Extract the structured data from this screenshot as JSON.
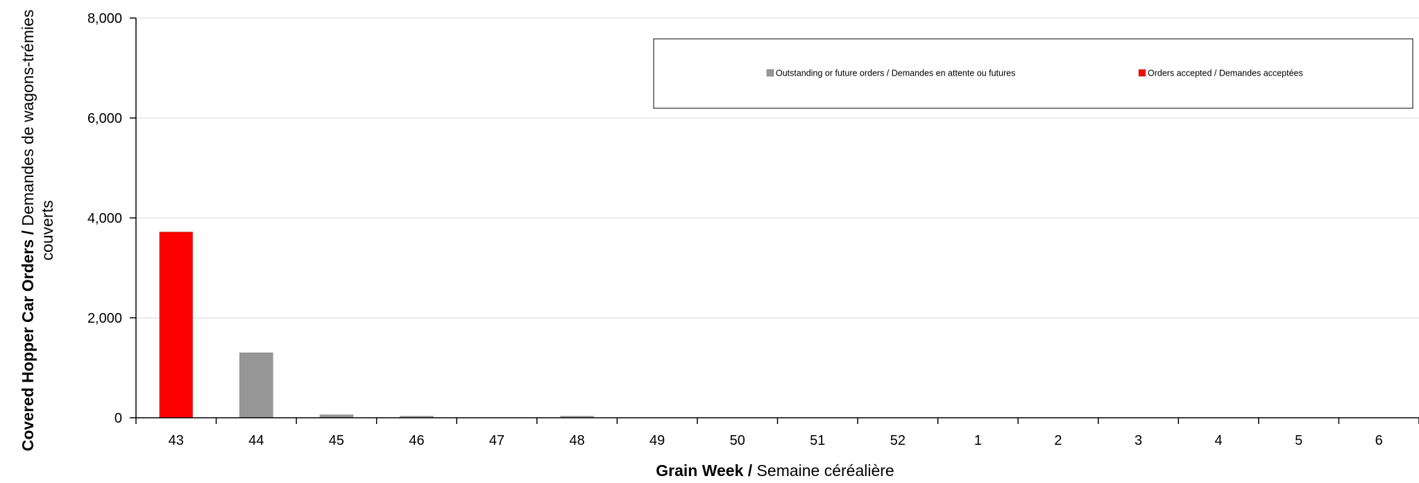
{
  "chart_data": {
    "type": "bar",
    "categories": [
      "43",
      "44",
      "45",
      "46",
      "47",
      "48",
      "49",
      "50",
      "51",
      "52",
      "1",
      "2",
      "3",
      "4",
      "5",
      "6"
    ],
    "series": [
      {
        "name": "Outstanding or future orders / Demandes en attente ou futures",
        "color": "#969696",
        "values": [
          0,
          1300,
          60,
          30,
          0,
          30,
          0,
          0,
          0,
          0,
          0,
          0,
          0,
          0,
          0,
          0
        ]
      },
      {
        "name": "Orders accepted / Demandes acceptées",
        "color": "#ff0000",
        "values": [
          3720,
          0,
          0,
          0,
          0,
          0,
          0,
          0,
          0,
          0,
          0,
          0,
          0,
          0,
          0,
          0
        ]
      }
    ],
    "ylim": [
      0,
      8000
    ],
    "yticks": [
      0,
      2000,
      4000,
      6000,
      8000
    ],
    "ytick_labels": [
      "0",
      "2,000",
      "4,000",
      "6,000",
      "8,000"
    ],
    "xlabel_bold": "Grain Week /",
    "xlabel_rest": " Semaine céréalière",
    "ylabel_bold": "Covered Hopper Car Orders /",
    "ylabel_rest": " Demandes de wagons-trémies",
    "ylabel_line2": "couverts",
    "grid": true,
    "legend_position": "top-right"
  }
}
